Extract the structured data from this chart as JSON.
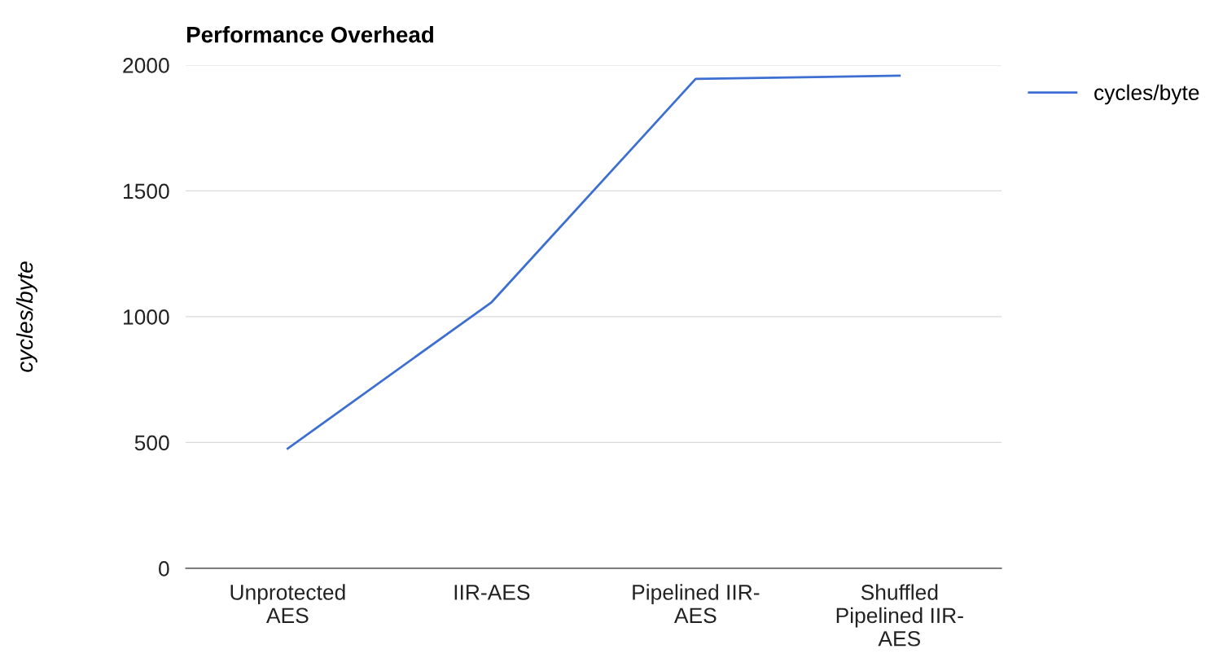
{
  "chart_data": {
    "type": "line",
    "title": "Performance Overhead",
    "ylabel": "cycles/byte",
    "categories": [
      "Unprotected\nAES",
      "IIR-AES",
      "Pipelined IIR-\nAES",
      "Shuffled\nPipelined IIR-\nAES"
    ],
    "series": [
      {
        "name": "cycles/byte",
        "color": "#3c6fd1",
        "values": [
          476,
          1058,
          1945,
          1958
        ]
      }
    ],
    "ylim": [
      0,
      2000
    ],
    "yticks": [
      0,
      500,
      1000,
      1500,
      2000
    ],
    "grid": "y",
    "legend": "top right",
    "marker": "none",
    "line_style": "solid"
  }
}
